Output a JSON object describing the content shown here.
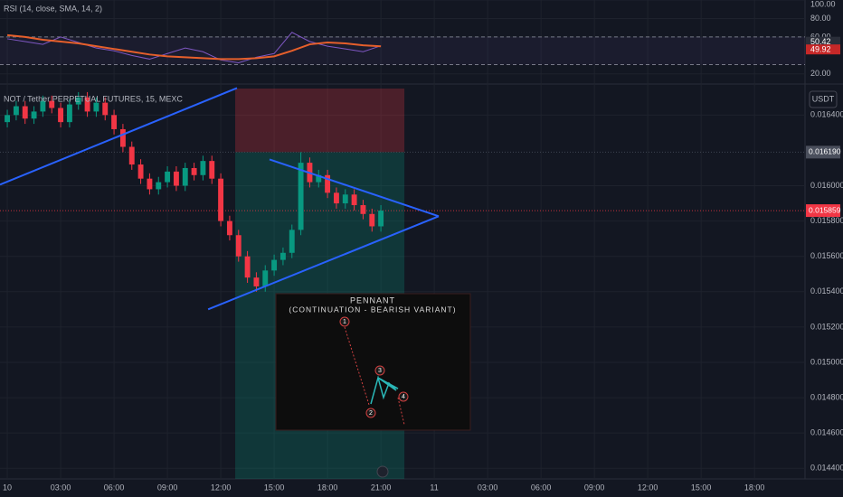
{
  "chart_data": {
    "type": "candlestick",
    "title": "NOT / Tether PERPETUAL FUTURES, 15, MEXC",
    "currency": "USDT",
    "x": [
      0,
      0.5,
      1,
      1.5,
      2,
      2.5,
      3,
      3.5,
      4,
      4.5,
      5,
      5.5,
      6,
      6.5,
      7,
      7.5,
      8,
      8.5,
      9,
      9.5,
      10,
      10.5,
      11,
      11.5,
      12,
      12.5,
      13,
      13.5,
      14,
      14.5,
      15,
      15.5,
      16,
      16.5,
      17,
      17.5,
      18,
      18.5,
      19,
      19.5,
      20,
      20.5,
      21
    ],
    "open": [
      0.01636,
      0.0164,
      0.01645,
      0.01638,
      0.01642,
      0.01648,
      0.01644,
      0.01636,
      0.01646,
      0.0165,
      0.01642,
      0.01647,
      0.0164,
      0.01632,
      0.01622,
      0.01612,
      0.01604,
      0.01598,
      0.01602,
      0.01608,
      0.016,
      0.0161,
      0.01606,
      0.01614,
      0.01604,
      0.0158,
      0.01572,
      0.0156,
      0.01548,
      0.01543,
      0.01552,
      0.01558,
      0.01562,
      0.01575,
      0.01613,
      0.01602,
      0.01606,
      0.01596,
      0.0159,
      0.01595,
      0.01589,
      0.01584,
      0.01577
    ],
    "high": [
      0.01643,
      0.01648,
      0.01648,
      0.01645,
      0.01651,
      0.01651,
      0.01647,
      0.01649,
      0.01653,
      0.01653,
      0.0165,
      0.0165,
      0.01643,
      0.01635,
      0.01625,
      0.01615,
      0.01607,
      0.01605,
      0.01611,
      0.01611,
      0.01613,
      0.01613,
      0.01617,
      0.01617,
      0.01607,
      0.01583,
      0.01575,
      0.01563,
      0.01551,
      0.01555,
      0.01561,
      0.01565,
      0.01578,
      0.01619,
      0.01616,
      0.01609,
      0.01609,
      0.01599,
      0.01598,
      0.01598,
      0.01592,
      0.01587,
      0.01589
    ],
    "low": [
      0.01633,
      0.01637,
      0.01635,
      0.01635,
      0.01639,
      0.01641,
      0.01633,
      0.01633,
      0.01643,
      0.01639,
      0.01639,
      0.01637,
      0.01629,
      0.01619,
      0.01609,
      0.01601,
      0.01595,
      0.01595,
      0.01599,
      0.01597,
      0.01597,
      0.01603,
      0.01603,
      0.01601,
      0.01577,
      0.01569,
      0.01557,
      0.01545,
      0.0154,
      0.0154,
      0.01549,
      0.01555,
      0.01559,
      0.01572,
      0.01599,
      0.01599,
      0.01593,
      0.01587,
      0.01587,
      0.01586,
      0.01581,
      0.01574,
      0.01574
    ],
    "close": [
      0.0164,
      0.01645,
      0.01638,
      0.01642,
      0.01648,
      0.01644,
      0.01636,
      0.01646,
      0.0165,
      0.01642,
      0.01647,
      0.0164,
      0.01632,
      0.01622,
      0.01612,
      0.01604,
      0.01598,
      0.01602,
      0.01608,
      0.016,
      0.0161,
      0.01606,
      0.01614,
      0.01604,
      0.0158,
      0.01572,
      0.0156,
      0.01548,
      0.01543,
      0.01552,
      0.01558,
      0.01562,
      0.01575,
      0.01613,
      0.01602,
      0.01606,
      0.01596,
      0.0159,
      0.01595,
      0.01589,
      0.01584,
      0.01577,
      0.015859
    ],
    "up_color": "#089981",
    "down_color": "#f23645",
    "xlim": [
      -0.41,
      44.84
    ],
    "xticks": [
      {
        "value": 0,
        "label": "10"
      },
      {
        "value": 3,
        "label": "03:00"
      },
      {
        "value": 6,
        "label": "06:00"
      },
      {
        "value": 9,
        "label": "09:00"
      },
      {
        "value": 12,
        "label": "12:00"
      },
      {
        "value": 15,
        "label": "15:00"
      },
      {
        "value": 18,
        "label": "18:00"
      },
      {
        "value": 21,
        "label": "21:00"
      },
      {
        "value": 24,
        "label": "11"
      },
      {
        "value": 27,
        "label": "03:00"
      },
      {
        "value": 30,
        "label": "06:00"
      },
      {
        "value": 33,
        "label": "09:00"
      },
      {
        "value": 36,
        "label": "12:00"
      },
      {
        "value": 39,
        "label": "15:00"
      },
      {
        "value": 42,
        "label": "18:00"
      }
    ],
    "ylim": [
      0.01434,
      0.01655
    ],
    "yticks": [
      {
        "value": 0.0164,
        "label": "0.016400"
      },
      {
        "value": 0.016,
        "label": "0.016000"
      },
      {
        "value": 0.0158,
        "label": "0.015800"
      },
      {
        "value": 0.0156,
        "label": "0.015600"
      },
      {
        "value": 0.0154,
        "label": "0.015400"
      },
      {
        "value": 0.0152,
        "label": "0.015200"
      },
      {
        "value": 0.015,
        "label": "0.015000"
      },
      {
        "value": 0.0148,
        "label": "0.014800"
      },
      {
        "value": 0.0146,
        "label": "0.014600"
      },
      {
        "value": 0.0144,
        "label": "0.014400"
      }
    ],
    "markers": [
      {
        "value": 0.01619,
        "label": "0.016190",
        "color": "#4a4f5c"
      },
      {
        "value": 0.015859,
        "color": "#f23645"
      }
    ],
    "trendline_color": "#2962ff",
    "trendlines": [
      {
        "x": [
          -0.41,
          12.91
        ],
        "y": [
          0.016006,
          0.016553
        ]
      },
      {
        "x": [
          14.74,
          24.25
        ],
        "y": [
          0.016149,
          0.015827
        ]
      },
      {
        "x": [
          11.29,
          24.25
        ],
        "y": [
          0.0153,
          0.015827
        ]
      }
    ],
    "position": {
      "x": [
        12.81,
        22.32
      ],
      "stop": 0.01655,
      "entry": 0.01619,
      "target": 0.01434
    },
    "rsi": {
      "type": "line",
      "title": "RSI (14, close, SMA, 14, 2)",
      "x": [
        0,
        1,
        2,
        3,
        4,
        5,
        6,
        7,
        8,
        9,
        10,
        11,
        12,
        13,
        14,
        15,
        16,
        17,
        18,
        19,
        20,
        21
      ],
      "series": [
        {
          "color": "#7e57c2",
          "values": [
            58,
            55,
            52,
            60,
            54,
            48,
            45,
            40,
            36,
            42,
            48,
            44,
            35,
            32,
            38,
            42,
            65,
            55,
            50,
            47,
            44,
            50.42
          ]
        },
        {
          "color": "#e65f2b",
          "values": [
            62,
            60,
            57,
            55,
            53,
            50,
            47,
            44,
            41,
            39,
            38,
            37,
            36,
            36,
            37,
            39,
            45,
            52,
            54,
            53,
            51,
            49.92
          ]
        }
      ],
      "ylim": [
        10,
        100
      ],
      "yticks": [
        {
          "value": 100,
          "label": "100.00"
        },
        {
          "value": 80,
          "label": "80.00"
        },
        {
          "value": 60,
          "label": "60.00"
        },
        {
          "value": 20,
          "label": "20.00"
        }
      ],
      "bands": [
        60,
        30
      ]
    }
  },
  "inset": {
    "title": "PENNANT",
    "subtitle": "(CONTINUATION - BEARISH VARIANT)",
    "points": [
      "1",
      "2",
      "3",
      "4"
    ]
  }
}
